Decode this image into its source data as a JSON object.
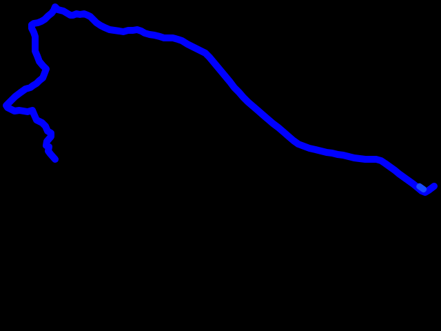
{
  "map": {
    "background_color": "#000000",
    "route_color": "#0000ff",
    "route_end_color": "#1a4dff"
  }
}
